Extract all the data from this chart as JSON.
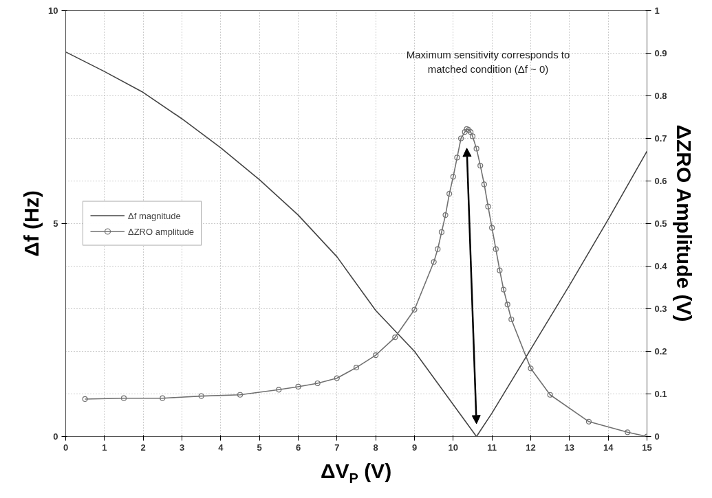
{
  "chart_data": {
    "type": "line",
    "xlabel": "ΔV$_{P}$ (V)",
    "ylabel": "Δf (Hz)",
    "y2label": "ΔZRO Amplitude (V)",
    "xlim": [
      0,
      15
    ],
    "xticks": [
      0,
      1,
      2,
      3,
      4,
      5,
      6,
      7,
      8,
      9,
      10,
      11,
      12,
      13,
      14,
      15
    ],
    "ylim": [
      0,
      10
    ],
    "yticks": [
      0,
      5,
      10
    ],
    "y2lim": [
      0,
      1
    ],
    "y2ticks": [
      0,
      0.1,
      0.2,
      0.3,
      0.4,
      0.5,
      0.6,
      0.7,
      0.8,
      0.9,
      1
    ],
    "grid": true,
    "legend": "left",
    "annotations": [
      "Maximum sensitivity corresponds to matched condition (Δf ~ 0)"
    ],
    "series": [
      {
        "name": "Δf magnitude",
        "color": "#444444",
        "marker": "none",
        "x": [
          0,
          1,
          2,
          3,
          4,
          5,
          6,
          7,
          8,
          9,
          10,
          10.6,
          11,
          12,
          13,
          14,
          15
        ],
        "values": [
          9.03,
          8.57,
          8.08,
          7.46,
          6.78,
          6.03,
          5.2,
          4.22,
          2.96,
          2.0,
          0.75,
          0,
          0.55,
          2.05,
          3.55,
          5.1,
          6.7
        ]
      },
      {
        "name": "ΔZRO amplitude",
        "color": "#707070",
        "marker": "circle",
        "axis": "y2",
        "x": [
          0.5,
          1.5,
          2.5,
          3.5,
          4.5,
          5.5,
          6,
          6.5,
          7,
          7.5,
          8,
          8.5,
          9,
          9.5,
          9.6,
          9.7,
          9.8,
          9.9,
          10.0,
          10.1,
          10.2,
          10.3,
          10.35,
          10.4,
          10.45,
          10.5,
          10.6,
          10.7,
          10.8,
          10.9,
          11.0,
          11.1,
          11.2,
          11.3,
          11.4,
          11.5,
          12,
          12.5,
          13.5,
          14.5,
          15
        ],
        "values": [
          0.088,
          0.09,
          0.09,
          0.095,
          0.098,
          0.11,
          0.117,
          0.125,
          0.137,
          0.162,
          0.191,
          0.233,
          0.298,
          0.41,
          0.44,
          0.48,
          0.52,
          0.57,
          0.61,
          0.655,
          0.7,
          0.715,
          0.722,
          0.72,
          0.715,
          0.705,
          0.676,
          0.636,
          0.592,
          0.54,
          0.49,
          0.44,
          0.39,
          0.345,
          0.31,
          0.275,
          0.16,
          0.098,
          0.035,
          0.01,
          0.0
        ]
      }
    ]
  }
}
